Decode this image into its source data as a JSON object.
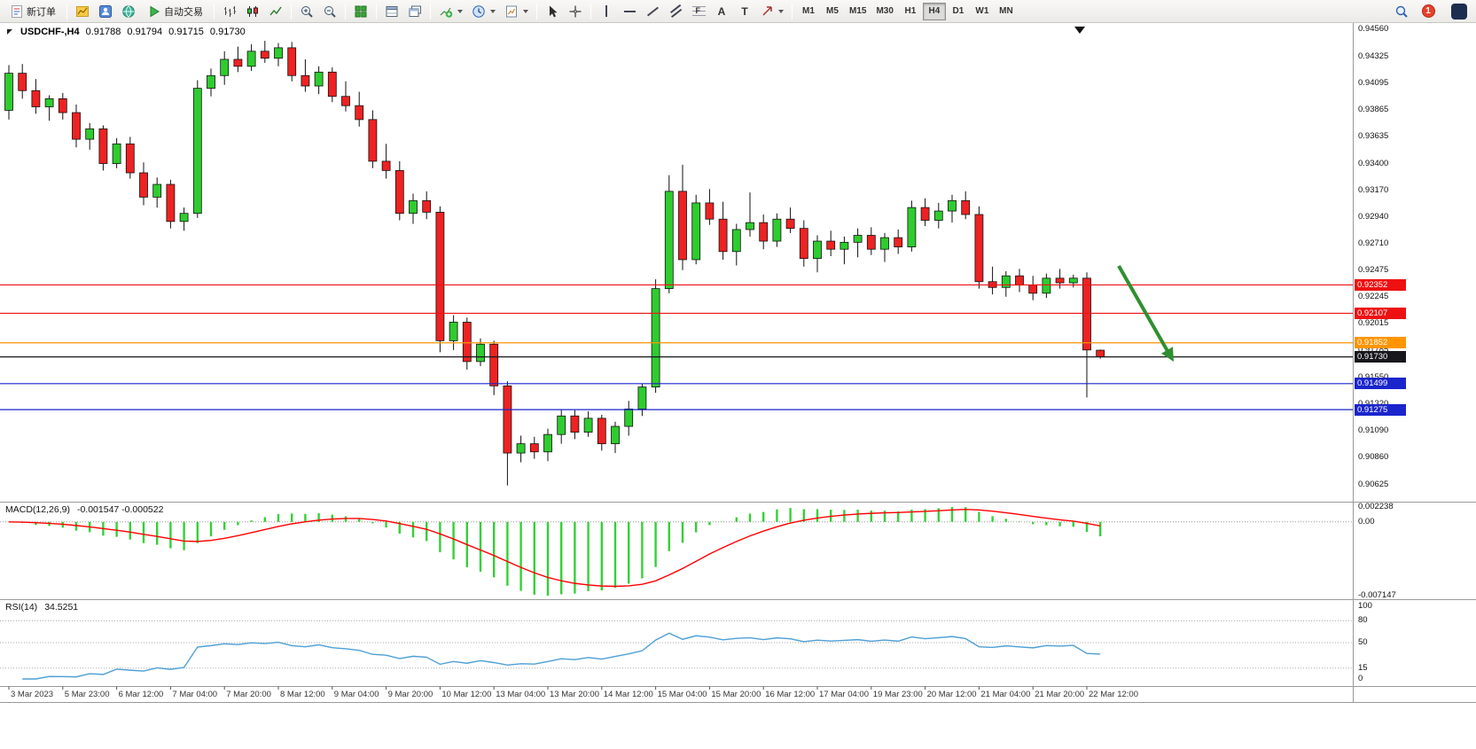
{
  "toolbar": {
    "new_order_label": "新订单",
    "autotrading_label": "自动交易",
    "timeframes": [
      "M1",
      "M5",
      "M15",
      "M30",
      "H1",
      "H4",
      "D1",
      "W1",
      "MN"
    ],
    "selected_timeframe": "H4",
    "tool_glyphs": {
      "fibonacci": "F",
      "text": "A",
      "label": "T"
    },
    "alert_badge": "1"
  },
  "chart_data": {
    "type": "candlestick",
    "symbol": "USDCHF-",
    "timeframe": "H4",
    "title": "USDCHF-,H4",
    "ohlc_display": {
      "open": "0.91788",
      "high": "0.91794",
      "low": "0.91715",
      "close": "0.91730"
    },
    "price_range": [
      0.90625,
      0.9456
    ],
    "y_axis_ticks": [
      "0.94560",
      "0.94325",
      "0.94095",
      "0.93865",
      "0.93635",
      "0.93400",
      "0.93170",
      "0.92940",
      "0.92710",
      "0.92475",
      "0.92245",
      "0.92015",
      "0.91785",
      "0.91550",
      "0.91320",
      "0.91090",
      "0.90860",
      "0.90625"
    ],
    "x_axis_labels": [
      "3 Mar 2023",
      "5 Mar 23:00",
      "6 Mar 12:00",
      "7 Mar 04:00",
      "7 Mar 20:00",
      "8 Mar 12:00",
      "9 Mar 04:00",
      "9 Mar 20:00",
      "10 Mar 12:00",
      "13 Mar 04:00",
      "13 Mar 20:00",
      "14 Mar 12:00",
      "15 Mar 04:00",
      "15 Mar 20:00",
      "16 Mar 12:00",
      "17 Mar 04:00",
      "19 Mar 23:00",
      "20 Mar 12:00",
      "21 Mar 04:00",
      "21 Mar 20:00",
      "22 Mar 12:00"
    ],
    "x_label_every_n_candles": 4,
    "colors": {
      "bull": "#2ecc2e",
      "bear": "#ee2222",
      "wick": "#101010"
    },
    "candles_ohlc": [
      [
        0.9386,
        0.9425,
        0.9378,
        0.9418
      ],
      [
        0.9418,
        0.9426,
        0.9396,
        0.9403
      ],
      [
        0.9403,
        0.9413,
        0.9383,
        0.9389
      ],
      [
        0.9389,
        0.9399,
        0.9377,
        0.9396
      ],
      [
        0.9396,
        0.9401,
        0.9378,
        0.9384
      ],
      [
        0.9384,
        0.9391,
        0.9354,
        0.9361
      ],
      [
        0.9361,
        0.9375,
        0.9352,
        0.937
      ],
      [
        0.937,
        0.9373,
        0.9334,
        0.934
      ],
      [
        0.934,
        0.9362,
        0.9336,
        0.9357
      ],
      [
        0.9357,
        0.9363,
        0.9327,
        0.9332
      ],
      [
        0.9332,
        0.9341,
        0.9304,
        0.9311
      ],
      [
        0.9311,
        0.9328,
        0.9302,
        0.9322
      ],
      [
        0.9322,
        0.9326,
        0.9284,
        0.929
      ],
      [
        0.929,
        0.9302,
        0.9282,
        0.9297
      ],
      [
        0.9297,
        0.9412,
        0.9293,
        0.9405
      ],
      [
        0.9405,
        0.9422,
        0.9398,
        0.9416
      ],
      [
        0.9416,
        0.9437,
        0.9408,
        0.943
      ],
      [
        0.943,
        0.9441,
        0.9419,
        0.9424
      ],
      [
        0.9424,
        0.9443,
        0.942,
        0.9437
      ],
      [
        0.9437,
        0.9446,
        0.9427,
        0.9431
      ],
      [
        0.9431,
        0.9444,
        0.9424,
        0.944
      ],
      [
        0.944,
        0.9445,
        0.9411,
        0.9416
      ],
      [
        0.9416,
        0.943,
        0.9402,
        0.9407
      ],
      [
        0.9407,
        0.9424,
        0.94,
        0.9419
      ],
      [
        0.9419,
        0.9423,
        0.9393,
        0.9398
      ],
      [
        0.9398,
        0.9411,
        0.9385,
        0.939
      ],
      [
        0.939,
        0.9402,
        0.9372,
        0.9378
      ],
      [
        0.9378,
        0.9386,
        0.9336,
        0.9342
      ],
      [
        0.9342,
        0.9357,
        0.9327,
        0.9334
      ],
      [
        0.9334,
        0.9342,
        0.9291,
        0.9297
      ],
      [
        0.9297,
        0.9314,
        0.9288,
        0.9308
      ],
      [
        0.9308,
        0.9316,
        0.9292,
        0.9298
      ],
      [
        0.9298,
        0.9303,
        0.9177,
        0.9187
      ],
      [
        0.9187,
        0.9209,
        0.9179,
        0.9203
      ],
      [
        0.9203,
        0.9207,
        0.9162,
        0.9169
      ],
      [
        0.9169,
        0.9189,
        0.9165,
        0.9184
      ],
      [
        0.9184,
        0.9187,
        0.914,
        0.9148
      ],
      [
        0.9148,
        0.9152,
        0.9062,
        0.909
      ],
      [
        0.909,
        0.9105,
        0.9082,
        0.9098
      ],
      [
        0.9098,
        0.9104,
        0.9085,
        0.9091
      ],
      [
        0.9091,
        0.9111,
        0.9083,
        0.9106
      ],
      [
        0.9106,
        0.9128,
        0.9098,
        0.9122
      ],
      [
        0.9122,
        0.9127,
        0.9102,
        0.9108
      ],
      [
        0.9108,
        0.9126,
        0.9104,
        0.912
      ],
      [
        0.912,
        0.9123,
        0.9092,
        0.9098
      ],
      [
        0.9098,
        0.9117,
        0.909,
        0.9113
      ],
      [
        0.9113,
        0.9135,
        0.9105,
        0.9128
      ],
      [
        0.9128,
        0.915,
        0.9122,
        0.9147
      ],
      [
        0.9147,
        0.924,
        0.9142,
        0.9232
      ],
      [
        0.9232,
        0.933,
        0.9228,
        0.9316
      ],
      [
        0.9316,
        0.9339,
        0.9248,
        0.9257
      ],
      [
        0.9257,
        0.9313,
        0.9253,
        0.9306
      ],
      [
        0.9306,
        0.9318,
        0.9287,
        0.9292
      ],
      [
        0.9292,
        0.9307,
        0.9257,
        0.9264
      ],
      [
        0.9264,
        0.9288,
        0.9252,
        0.9283
      ],
      [
        0.9283,
        0.9315,
        0.9277,
        0.9289
      ],
      [
        0.9289,
        0.9296,
        0.9266,
        0.9273
      ],
      [
        0.9273,
        0.9297,
        0.9268,
        0.9292
      ],
      [
        0.9292,
        0.9302,
        0.928,
        0.9284
      ],
      [
        0.9284,
        0.9291,
        0.9251,
        0.9258
      ],
      [
        0.9258,
        0.9278,
        0.9246,
        0.9273
      ],
      [
        0.9273,
        0.9282,
        0.926,
        0.9266
      ],
      [
        0.9266,
        0.9277,
        0.9253,
        0.9272
      ],
      [
        0.9272,
        0.9284,
        0.9259,
        0.9278
      ],
      [
        0.9278,
        0.9285,
        0.9261,
        0.9266
      ],
      [
        0.9266,
        0.928,
        0.9255,
        0.9276
      ],
      [
        0.9276,
        0.9283,
        0.9262,
        0.9268
      ],
      [
        0.9268,
        0.9308,
        0.9264,
        0.9302
      ],
      [
        0.9302,
        0.931,
        0.9286,
        0.9291
      ],
      [
        0.9291,
        0.9306,
        0.9284,
        0.9299
      ],
      [
        0.9299,
        0.9313,
        0.9289,
        0.9308
      ],
      [
        0.9308,
        0.9316,
        0.9292,
        0.9296
      ],
      [
        0.9296,
        0.9303,
        0.9232,
        0.9238
      ],
      [
        0.9238,
        0.9251,
        0.9227,
        0.9233
      ],
      [
        0.9233,
        0.9247,
        0.9225,
        0.9243
      ],
      [
        0.9243,
        0.9249,
        0.9229,
        0.9235
      ],
      [
        0.9235,
        0.9243,
        0.9222,
        0.9228
      ],
      [
        0.9228,
        0.9245,
        0.9224,
        0.9241
      ],
      [
        0.9241,
        0.9249,
        0.9232,
        0.9237
      ],
      [
        0.9237,
        0.9244,
        0.9233,
        0.9241
      ],
      [
        0.9241,
        0.9246,
        0.9138,
        0.9179
      ],
      [
        0.91788,
        0.91794,
        0.91715,
        0.9173
      ]
    ],
    "horizontal_levels": [
      {
        "value": 0.92352,
        "label": "0.92352",
        "color": "#ee1111",
        "type": "resistance-line"
      },
      {
        "value": 0.92107,
        "label": "0.92107",
        "color": "#ee1111",
        "type": "resistance-line"
      },
      {
        "value": 0.91852,
        "label": "0.91852",
        "color": "#ff9500",
        "type": "pivot-line"
      },
      {
        "value": 0.9173,
        "label": "0.91730",
        "color": "#17171c",
        "type": "bid-price-line"
      },
      {
        "value": 0.91499,
        "label": "0.91499",
        "color": "#1a25cc",
        "type": "support-line"
      },
      {
        "value": 0.91275,
        "label": "0.91275",
        "color": "#1a25cc",
        "type": "support-line"
      }
    ],
    "current_bid": 0.9173,
    "indicators": [
      {
        "type": "MACD",
        "label": "MACD(12,26,9)",
        "display_values": "-0.001547 -0.000522",
        "axis_ticks": [
          "0.002238",
          "0.00",
          "-0.007147"
        ],
        "histogram_color": "#35d035",
        "signal_color": "#ff0000"
      },
      {
        "type": "RSI",
        "label": "RSI(14)",
        "display_value": "34.5251",
        "axis_ticks": [
          "100",
          "80",
          "50",
          "15",
          "0"
        ],
        "level_lines": [
          80,
          50,
          15
        ],
        "line_color": "#4d9fd6"
      }
    ],
    "annotations": [
      {
        "type": "arrow",
        "color": "#2f8f2f",
        "direction": "down-right",
        "from_price": 0.9248,
        "to_price": 0.9168
      }
    ]
  }
}
